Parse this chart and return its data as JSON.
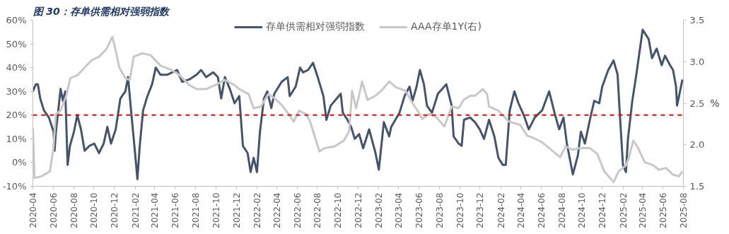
{
  "chart_data": {
    "type": "line",
    "title": "图 30：存单供需相对强弱指数",
    "xlim": [
      "2020-04-01",
      "2025-08-01"
    ],
    "xticks": [
      "2020-04",
      "2020-06",
      "2020-08",
      "2020-10",
      "2020-12",
      "2021-02",
      "2021-04",
      "2021-06",
      "2021-08",
      "2021-10",
      "2021-12",
      "2022-02",
      "2022-04",
      "2022-06",
      "2022-08",
      "2022-10",
      "2022-12",
      "2023-02",
      "2023-04",
      "2023-06",
      "2023-08",
      "2023-10",
      "2023-12",
      "2024-02",
      "2024-04",
      "2024-06",
      "2024-08",
      "2024-10",
      "2024-12",
      "2025-02",
      "2025-04",
      "2025-06",
      "2025-08"
    ],
    "ylim": [
      -10,
      60
    ],
    "yticks": [
      {
        "value": -10,
        "label": "-10%"
      },
      {
        "value": 0,
        "label": "0%"
      },
      {
        "value": 10,
        "label": "10%"
      },
      {
        "value": 20,
        "label": "20%"
      },
      {
        "value": 30,
        "label": "30%"
      },
      {
        "value": 40,
        "label": "40%"
      },
      {
        "value": 50,
        "label": "50%"
      },
      {
        "value": 60,
        "label": "60%"
      }
    ],
    "y2lim": [
      1.5,
      3.5
    ],
    "y2ticks": [
      {
        "value": 1.5,
        "label": "1.5"
      },
      {
        "value": 2,
        "label": "2.0"
      },
      {
        "value": 2.5,
        "label": "2.5"
      },
      {
        "value": 3,
        "label": "3.0"
      },
      {
        "value": 3.5,
        "label": "3.5"
      }
    ],
    "y2label": "%",
    "legend": "top",
    "grid": false,
    "marker": "none",
    "line_style": "solid",
    "ref_lines": [
      {
        "axis": "y",
        "value": 20,
        "color": "#e00000",
        "line_style": "dashed"
      }
    ],
    "series": [
      {
        "name": "存单供需相对强弱指数",
        "color": "#44546a",
        "x": [
          "2020-04-01",
          "2020-04-10",
          "2020-04-16",
          "2020-04-23",
          "2020-05-04",
          "2020-05-19",
          "2020-05-26",
          "2020-06-02",
          "2020-06-05",
          "2020-06-09",
          "2020-06-16",
          "2020-06-23",
          "2020-06-30",
          "2020-07-07",
          "2020-07-14",
          "2020-07-21",
          "2020-08-02",
          "2020-08-12",
          "2020-08-23",
          "2020-09-03",
          "2020-09-17",
          "2020-10-02",
          "2020-10-16",
          "2020-10-30",
          "2020-11-10",
          "2020-11-21",
          "2020-12-05",
          "2020-12-19",
          "2021-01-03",
          "2021-01-11",
          "2021-01-20",
          "2021-02-01",
          "2021-02-08",
          "2021-02-15",
          "2021-02-25",
          "2021-03-10",
          "2021-03-24",
          "2021-04-04",
          "2021-04-18",
          "2021-05-09",
          "2021-06-07",
          "2021-06-22",
          "2021-07-13",
          "2021-08-04",
          "2021-08-18",
          "2021-09-02",
          "2021-09-23",
          "2021-10-07",
          "2021-10-17",
          "2021-10-28",
          "2021-11-12",
          "2021-11-26",
          "2021-12-10",
          "2021-12-21",
          "2022-01-04",
          "2022-01-13",
          "2022-01-22",
          "2022-02-01",
          "2022-02-10",
          "2022-02-22",
          "2022-03-04",
          "2022-03-16",
          "2022-03-25",
          "2022-04-16",
          "2022-05-04",
          "2022-05-10",
          "2022-05-28",
          "2022-06-10",
          "2022-06-19",
          "2022-07-04",
          "2022-07-19",
          "2022-08-02",
          "2022-08-19",
          "2022-08-28",
          "2022-09-10",
          "2022-09-28",
          "2022-10-10",
          "2022-10-16",
          "2022-10-30",
          "2022-11-10",
          "2022-11-21",
          "2022-12-04",
          "2022-12-16",
          "2023-01-03",
          "2023-01-22",
          "2023-02-01",
          "2023-02-16",
          "2023-03-04",
          "2023-03-10",
          "2023-04-04",
          "2023-04-19",
          "2023-05-04",
          "2023-05-13",
          "2023-05-25",
          "2023-06-04",
          "2023-06-16",
          "2023-06-25",
          "2023-07-10",
          "2023-07-28",
          "2023-08-22",
          "2023-09-07",
          "2023-09-13",
          "2023-09-28",
          "2023-10-07",
          "2023-10-14",
          "2023-11-01",
          "2023-11-16",
          "2023-11-30",
          "2023-12-13",
          "2023-12-28",
          "2024-01-13",
          "2024-01-25",
          "2024-02-07",
          "2024-02-16",
          "2024-02-28",
          "2024-03-13",
          "2024-03-25",
          "2024-04-10",
          "2024-04-25",
          "2024-05-13",
          "2024-06-04",
          "2024-06-25",
          "2024-07-11",
          "2024-07-25",
          "2024-08-07",
          "2024-08-17",
          "2024-09-04",
          "2024-09-19",
          "2024-09-28",
          "2024-10-10",
          "2024-10-25",
          "2024-11-07",
          "2024-11-22",
          "2024-12-01",
          "2024-12-19",
          "2025-01-04",
          "2025-01-16",
          "2025-01-22",
          "2025-02-01",
          "2025-02-10",
          "2025-02-16",
          "2025-03-01",
          "2025-03-13",
          "2025-04-01",
          "2025-04-19",
          "2025-04-29",
          "2025-05-13",
          "2025-05-28",
          "2025-06-07",
          "2025-06-22",
          "2025-07-01",
          "2025-07-10",
          "2025-07-13",
          "2025-07-19",
          "2025-07-29"
        ],
        "values": [
          30,
          33,
          33,
          27,
          22,
          19,
          16,
          13,
          5,
          13,
          22,
          31,
          26,
          30,
          -1,
          7,
          13,
          20,
          14,
          5,
          7,
          8,
          4,
          8,
          15,
          8,
          14,
          27,
          30,
          36,
          22,
          4,
          -7,
          7,
          22,
          28,
          33,
          40,
          37,
          37,
          39,
          34,
          35,
          37,
          39,
          36,
          38,
          36,
          27,
          36,
          31,
          25,
          28,
          7,
          4,
          -4,
          2,
          -4,
          13,
          27,
          30,
          23,
          29,
          34,
          36,
          28,
          32,
          40,
          38,
          39,
          42,
          36,
          28,
          18,
          24,
          27,
          29,
          21,
          18,
          15,
          10,
          12,
          6,
          14,
          4,
          -3,
          17,
          11,
          15,
          21,
          28,
          32,
          26,
          32,
          39,
          33,
          24,
          21,
          29,
          33,
          24,
          11,
          8,
          7,
          18,
          19,
          17,
          14,
          10,
          18,
          11,
          2,
          -1,
          -1,
          22,
          30,
          25,
          20,
          14,
          19,
          22,
          30,
          21,
          14,
          19,
          8,
          -5,
          3,
          13,
          8,
          18,
          26,
          25,
          32,
          39,
          43,
          37,
          22,
          -1,
          -4,
          10,
          26,
          37,
          56,
          52,
          44,
          48,
          41,
          45,
          41,
          39,
          32,
          24,
          28,
          35
        ]
      },
      {
        "name": "AAA存单1Y(右)",
        "color": "#c8c8c8",
        "axis": "y2",
        "x": [
          "2020-04-01",
          "2020-04-06",
          "2020-04-27",
          "2020-05-22",
          "2020-06-01",
          "2020-06-09",
          "2020-06-23",
          "2020-07-10",
          "2020-07-22",
          "2020-08-13",
          "2020-09-03",
          "2020-09-25",
          "2020-10-16",
          "2020-11-07",
          "2020-11-25",
          "2020-12-04",
          "2020-12-16",
          "2021-01-03",
          "2021-01-16",
          "2021-01-28",
          "2021-02-22",
          "2021-03-19",
          "2021-04-19",
          "2021-05-16",
          "2021-06-14",
          "2021-07-13",
          "2021-08-04",
          "2021-09-01",
          "2021-09-30",
          "2021-10-28",
          "2021-11-25",
          "2021-12-10",
          "2022-01-07",
          "2022-01-22",
          "2022-02-13",
          "2022-03-07",
          "2022-03-25",
          "2022-04-16",
          "2022-05-07",
          "2022-05-22",
          "2022-06-07",
          "2022-06-28",
          "2022-07-10",
          "2022-07-25",
          "2022-08-07",
          "2022-08-22",
          "2022-09-22",
          "2022-10-19",
          "2022-11-04",
          "2022-11-13",
          "2022-11-25",
          "2022-12-13",
          "2022-12-29",
          "2023-01-22",
          "2023-02-13",
          "2023-03-04",
          "2023-03-25",
          "2023-04-22",
          "2023-05-13",
          "2023-05-28",
          "2023-06-11",
          "2023-07-02",
          "2023-07-24",
          "2023-08-16",
          "2023-09-07",
          "2023-09-28",
          "2023-10-13",
          "2023-11-01",
          "2023-11-16",
          "2023-12-10",
          "2023-12-22",
          "2023-12-28",
          "2024-01-25",
          "2024-02-25",
          "2024-03-30",
          "2024-04-20",
          "2024-05-04",
          "2024-06-04",
          "2024-07-01",
          "2024-07-28",
          "2024-08-13",
          "2024-09-04",
          "2024-09-25",
          "2024-10-25",
          "2024-11-16",
          "2024-12-07",
          "2025-01-04",
          "2025-01-19",
          "2025-02-10",
          "2025-02-19",
          "2025-03-04",
          "2025-03-16",
          "2025-04-07",
          "2025-05-04",
          "2025-05-19",
          "2025-06-10",
          "2025-07-01",
          "2025-07-19",
          "2025-07-29"
        ],
        "values": [
          2.2,
          1.6,
          1.62,
          1.68,
          1.94,
          2.37,
          2.41,
          2.59,
          2.8,
          2.84,
          2.93,
          3.02,
          3.06,
          3.15,
          3.3,
          3.15,
          2.93,
          2.8,
          2.78,
          3.06,
          3.1,
          3.08,
          2.95,
          2.91,
          2.84,
          2.72,
          2.67,
          2.67,
          2.72,
          2.78,
          2.72,
          2.67,
          2.61,
          2.44,
          2.46,
          2.61,
          2.56,
          2.48,
          2.37,
          2.28,
          2.41,
          2.37,
          2.28,
          2.09,
          1.92,
          1.96,
          1.98,
          2.05,
          2.16,
          2.65,
          2.44,
          2.76,
          2.54,
          2.59,
          2.67,
          2.76,
          2.69,
          2.65,
          2.5,
          2.41,
          2.31,
          2.37,
          2.33,
          2.22,
          2.46,
          2.44,
          2.54,
          2.59,
          2.59,
          2.67,
          2.61,
          2.46,
          2.41,
          2.28,
          2.24,
          2.11,
          2.09,
          2.03,
          1.94,
          1.85,
          1.98,
          1.94,
          1.96,
          1.96,
          1.89,
          1.68,
          1.55,
          1.68,
          1.75,
          1.85,
          2.05,
          1.98,
          1.79,
          1.75,
          1.7,
          1.72,
          1.64,
          1.62,
          1.68
        ]
      }
    ]
  }
}
